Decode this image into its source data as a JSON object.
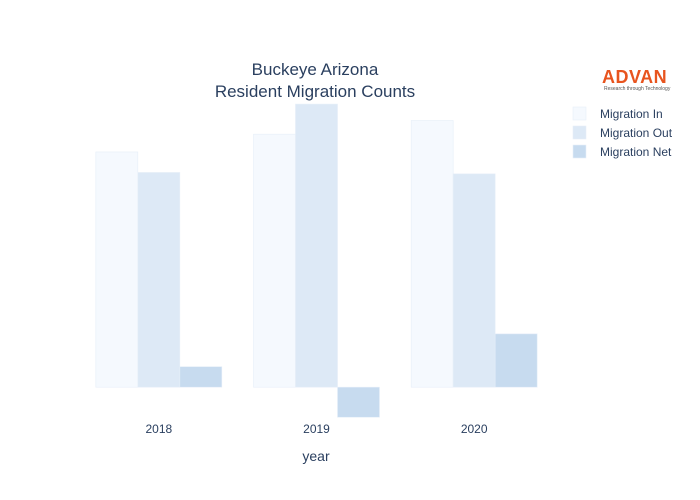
{
  "logo": {
    "name": "ADVAN",
    "tagline": "Research through Technology"
  },
  "chart_data": {
    "type": "bar",
    "title_lines": [
      "Buckeye Arizona",
      "Resident Migration Counts"
    ],
    "xlabel": "year",
    "ylabel": "",
    "categories": [
      "2018",
      "2019",
      "2020"
    ],
    "series": [
      {
        "name": "Migration In",
        "color": "#f5f9fe",
        "values": [
          8600,
          9250,
          9750
        ]
      },
      {
        "name": "Migration Out",
        "color": "#dde9f6",
        "values": [
          7850,
          10350,
          7800
        ]
      },
      {
        "name": "Migration Net",
        "color": "#c7dbef",
        "values": [
          750,
          -1100,
          1950
        ]
      }
    ],
    "ylim": [
      -1200,
      10500
    ],
    "grid": false,
    "y_ticks_shown": false,
    "legend_position": "top-right"
  }
}
